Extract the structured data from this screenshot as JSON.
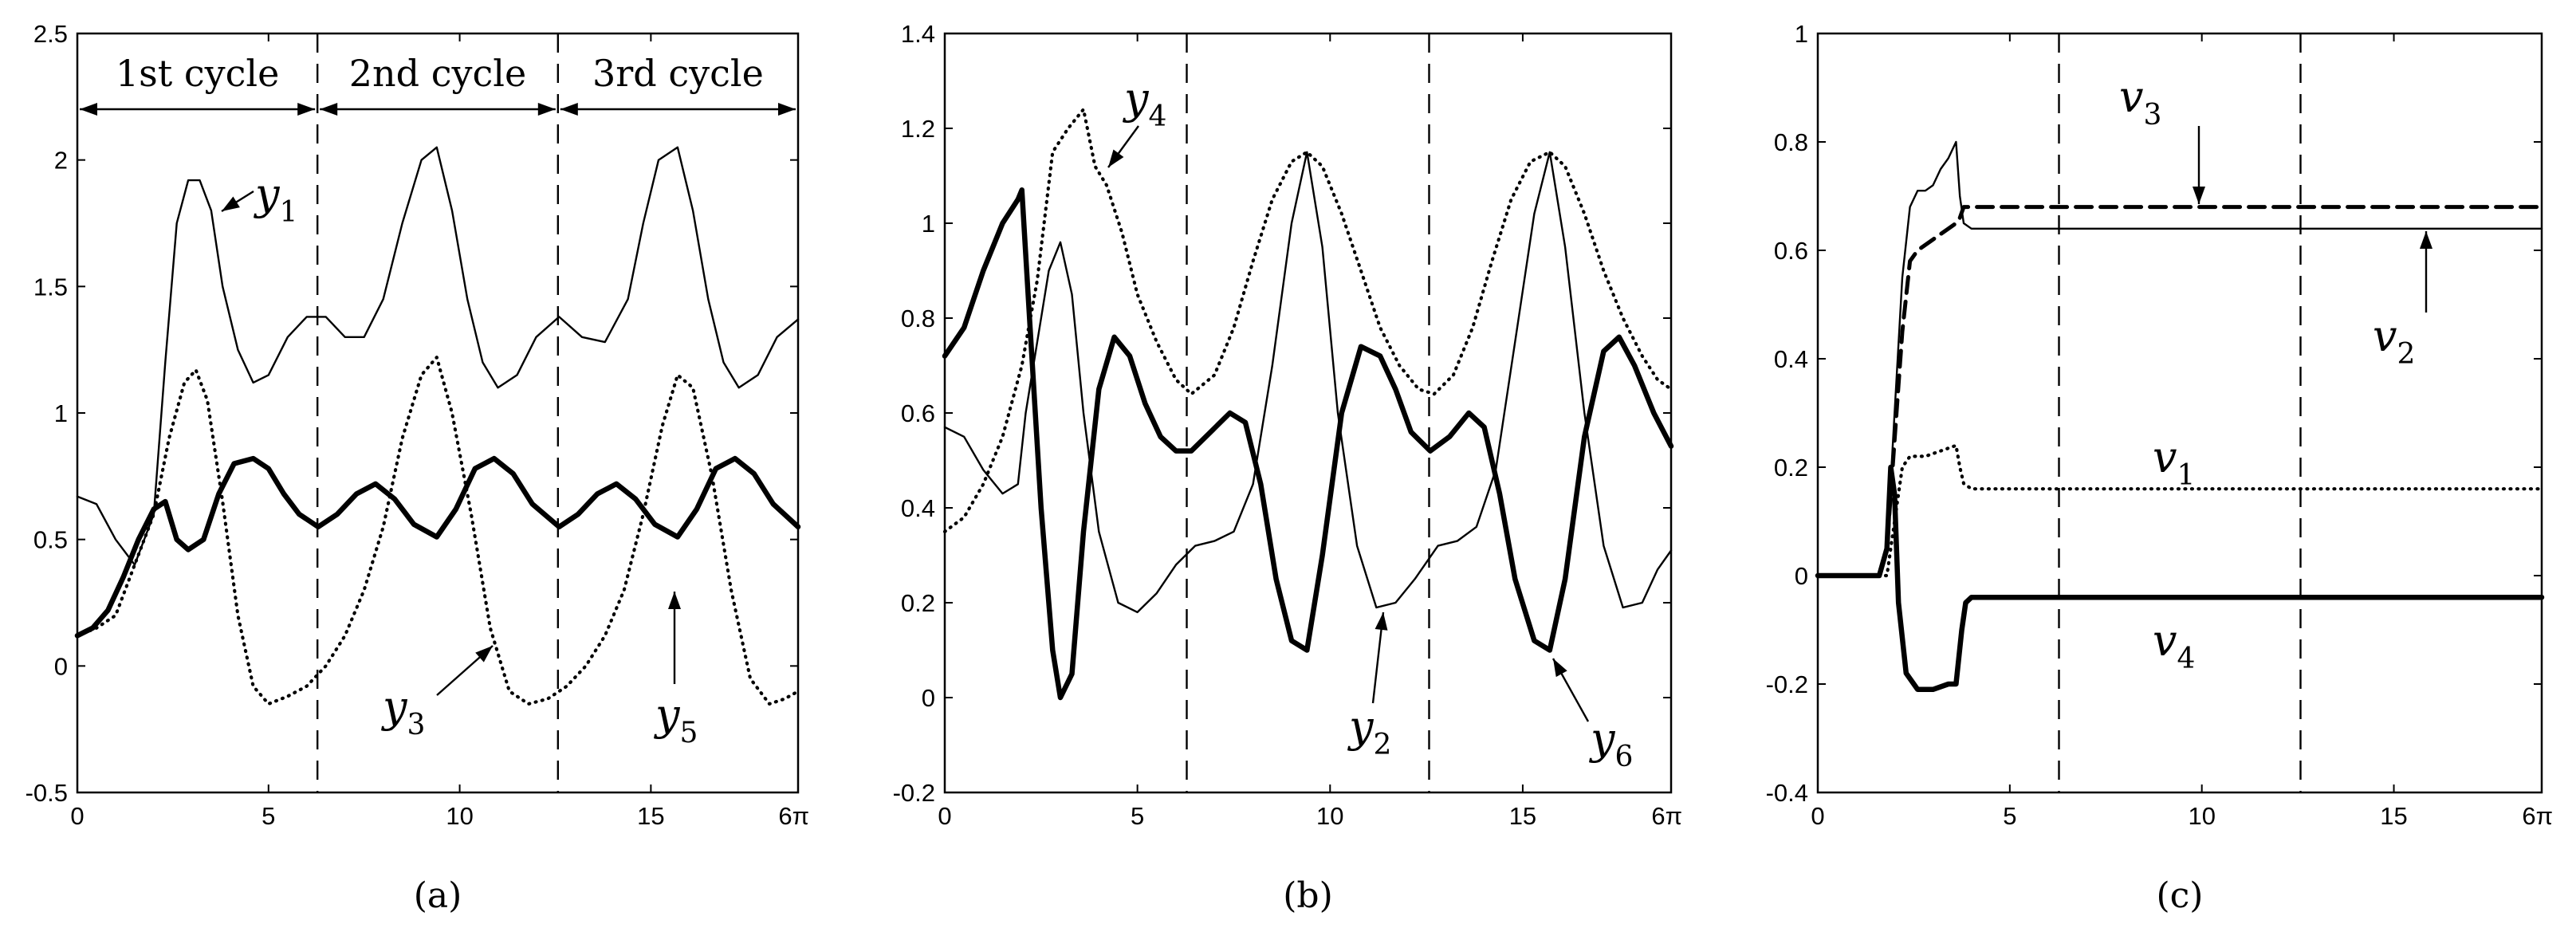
{
  "chart_data": [
    {
      "type": "line",
      "caption": "(a)",
      "xlim": [
        0,
        18.85
      ],
      "ylim": [
        -0.5,
        2.5
      ],
      "xticks": [
        {
          "v": 0,
          "label": "0"
        },
        {
          "v": 5,
          "label": "5"
        },
        {
          "v": 10,
          "label": "10"
        },
        {
          "v": 15,
          "label": "15"
        },
        {
          "v": 18.85,
          "label": "6π"
        }
      ],
      "yticks": [
        {
          "v": -0.5,
          "label": "-0.5"
        },
        {
          "v": 0,
          "label": "0"
        },
        {
          "v": 0.5,
          "label": "0.5"
        },
        {
          "v": 1,
          "label": "1"
        },
        {
          "v": 1.5,
          "label": "1.5"
        },
        {
          "v": 2,
          "label": "2"
        },
        {
          "v": 2.5,
          "label": "2.5"
        }
      ],
      "vlines": [
        6.28,
        12.57
      ],
      "cycles": [
        {
          "label": "1st cycle",
          "from": 0,
          "to": 6.28
        },
        {
          "label": "2nd cycle",
          "from": 6.28,
          "to": 12.57
        },
        {
          "label": "3rd cycle",
          "from": 12.57,
          "to": 18.85
        }
      ],
      "series": [
        {
          "name": "y1",
          "style": "thin",
          "x": [
            0,
            0.5,
            1.0,
            1.5,
            2.0,
            2.3,
            2.6,
            2.9,
            3.2,
            3.5,
            3.8,
            4.2,
            4.6,
            5.0,
            5.5,
            6.0,
            6.5,
            7.0,
            7.5,
            8.0,
            8.5,
            9.0,
            9.4,
            9.8,
            10.2,
            10.6,
            11.0,
            11.5,
            12.0,
            12.6,
            13.2,
            13.8,
            14.4,
            14.8,
            15.2,
            15.7,
            16.1,
            16.5,
            16.9,
            17.3,
            17.8,
            18.3,
            18.85
          ],
          "y": [
            0.67,
            0.64,
            0.5,
            0.4,
            0.6,
            1.2,
            1.75,
            1.92,
            1.92,
            1.8,
            1.5,
            1.25,
            1.12,
            1.15,
            1.3,
            1.38,
            1.38,
            1.3,
            1.3,
            1.45,
            1.75,
            2.0,
            2.05,
            1.8,
            1.45,
            1.2,
            1.1,
            1.15,
            1.3,
            1.38,
            1.3,
            1.28,
            1.45,
            1.75,
            2.0,
            2.05,
            1.8,
            1.45,
            1.2,
            1.1,
            1.15,
            1.3,
            1.37
          ]
        },
        {
          "name": "y3",
          "style": "dotted",
          "x": [
            0,
            0.5,
            1.0,
            1.5,
            2.0,
            2.4,
            2.8,
            3.1,
            3.4,
            3.8,
            4.2,
            4.6,
            5.0,
            5.5,
            6.0,
            6.5,
            7.0,
            7.5,
            8.0,
            8.5,
            9.0,
            9.4,
            9.8,
            10.3,
            10.8,
            11.3,
            11.8,
            12.3,
            12.8,
            13.3,
            13.8,
            14.3,
            14.8,
            15.3,
            15.7,
            16.1,
            16.6,
            17.1,
            17.6,
            18.1,
            18.5,
            18.85
          ],
          "y": [
            0.12,
            0.15,
            0.2,
            0.4,
            0.6,
            0.9,
            1.12,
            1.17,
            1.05,
            0.65,
            0.2,
            -0.08,
            -0.15,
            -0.12,
            -0.08,
            0.0,
            0.12,
            0.3,
            0.55,
            0.9,
            1.15,
            1.22,
            1.0,
            0.6,
            0.15,
            -0.1,
            -0.15,
            -0.13,
            -0.08,
            0.0,
            0.12,
            0.3,
            0.6,
            0.95,
            1.15,
            1.1,
            0.75,
            0.3,
            -0.05,
            -0.15,
            -0.13,
            -0.1
          ]
        },
        {
          "name": "y5",
          "style": "thick",
          "x": [
            0,
            0.4,
            0.8,
            1.2,
            1.6,
            2.0,
            2.3,
            2.6,
            2.9,
            3.3,
            3.7,
            4.1,
            4.6,
            5.0,
            5.4,
            5.8,
            6.3,
            6.8,
            7.3,
            7.8,
            8.3,
            8.8,
            9.4,
            9.9,
            10.4,
            10.9,
            11.4,
            11.9,
            12.6,
            13.1,
            13.6,
            14.1,
            14.6,
            15.1,
            15.7,
            16.2,
            16.7,
            17.2,
            17.7,
            18.2,
            18.85
          ],
          "y": [
            0.12,
            0.15,
            0.22,
            0.35,
            0.5,
            0.62,
            0.65,
            0.5,
            0.46,
            0.5,
            0.68,
            0.8,
            0.82,
            0.78,
            0.68,
            0.6,
            0.55,
            0.6,
            0.68,
            0.72,
            0.66,
            0.56,
            0.51,
            0.62,
            0.78,
            0.82,
            0.76,
            0.64,
            0.55,
            0.6,
            0.68,
            0.72,
            0.66,
            0.56,
            0.51,
            0.62,
            0.78,
            0.82,
            0.76,
            0.64,
            0.55
          ]
        }
      ],
      "labels": [
        {
          "text": "y",
          "sub": "1"
        },
        {
          "text": "y",
          "sub": "3"
        },
        {
          "text": "y",
          "sub": "5"
        }
      ]
    },
    {
      "type": "line",
      "caption": "(b)",
      "xlim": [
        0,
        18.85
      ],
      "ylim": [
        -0.2,
        1.4
      ],
      "xticks": [
        {
          "v": 0,
          "label": "0"
        },
        {
          "v": 5,
          "label": "5"
        },
        {
          "v": 10,
          "label": "10"
        },
        {
          "v": 15,
          "label": "15"
        },
        {
          "v": 18.85,
          "label": "6π"
        }
      ],
      "yticks": [
        {
          "v": -0.2,
          "label": "-0.2"
        },
        {
          "v": 0,
          "label": "0"
        },
        {
          "v": 0.2,
          "label": "0.2"
        },
        {
          "v": 0.4,
          "label": "0.4"
        },
        {
          "v": 0.6,
          "label": "0.6"
        },
        {
          "v": 0.8,
          "label": "0.8"
        },
        {
          "v": 1,
          "label": "1"
        },
        {
          "v": 1.2,
          "label": "1.2"
        },
        {
          "v": 1.4,
          "label": "1.4"
        }
      ],
      "vlines": [
        6.28,
        12.57
      ],
      "series": [
        {
          "name": "y2",
          "style": "thin",
          "x": [
            0,
            0.5,
            1.0,
            1.5,
            1.9,
            2.1,
            2.4,
            2.7,
            3.0,
            3.3,
            3.6,
            4.0,
            4.5,
            5.0,
            5.5,
            6.0,
            6.5,
            7.0,
            7.5,
            8.0,
            8.5,
            9.0,
            9.4,
            9.8,
            10.2,
            10.7,
            11.2,
            11.7,
            12.2,
            12.8,
            13.3,
            13.8,
            14.3,
            14.8,
            15.3,
            15.7,
            16.1,
            16.6,
            17.1,
            17.6,
            18.1,
            18.5,
            18.85
          ],
          "y": [
            0.57,
            0.55,
            0.48,
            0.43,
            0.45,
            0.6,
            0.75,
            0.9,
            0.96,
            0.85,
            0.6,
            0.35,
            0.2,
            0.18,
            0.22,
            0.28,
            0.32,
            0.33,
            0.35,
            0.45,
            0.7,
            1.0,
            1.15,
            0.95,
            0.6,
            0.32,
            0.19,
            0.2,
            0.25,
            0.32,
            0.33,
            0.36,
            0.48,
            0.75,
            1.02,
            1.15,
            0.95,
            0.6,
            0.32,
            0.19,
            0.2,
            0.27,
            0.31
          ]
        },
        {
          "name": "y4",
          "style": "dotted",
          "x": [
            0,
            0.5,
            1.0,
            1.5,
            2.0,
            2.4,
            2.8,
            3.2,
            3.6,
            3.9,
            4.2,
            4.6,
            5.0,
            5.5,
            6.0,
            6.4,
            7.0,
            7.5,
            8.0,
            8.5,
            9.0,
            9.4,
            9.8,
            10.3,
            10.8,
            11.3,
            11.8,
            12.3,
            12.7,
            13.2,
            13.7,
            14.2,
            14.7,
            15.2,
            15.7,
            16.1,
            16.6,
            17.1,
            17.6,
            18.1,
            18.5,
            18.85
          ],
          "y": [
            0.35,
            0.38,
            0.45,
            0.55,
            0.7,
            0.88,
            1.15,
            1.2,
            1.24,
            1.12,
            1.08,
            0.98,
            0.85,
            0.75,
            0.67,
            0.64,
            0.68,
            0.78,
            0.92,
            1.05,
            1.13,
            1.15,
            1.12,
            1.02,
            0.9,
            0.78,
            0.7,
            0.65,
            0.64,
            0.68,
            0.78,
            0.92,
            1.05,
            1.13,
            1.15,
            1.12,
            1.02,
            0.9,
            0.8,
            0.72,
            0.67,
            0.65
          ]
        },
        {
          "name": "y6",
          "style": "thick",
          "x": [
            0,
            0.5,
            1.0,
            1.5,
            1.9,
            2.0,
            2.2,
            2.5,
            2.8,
            3.0,
            3.3,
            3.6,
            4.0,
            4.4,
            4.8,
            5.2,
            5.6,
            6.0,
            6.4,
            6.9,
            7.4,
            7.8,
            8.2,
            8.6,
            9.0,
            9.4,
            9.8,
            10.3,
            10.8,
            11.3,
            11.7,
            12.1,
            12.6,
            13.1,
            13.6,
            14.0,
            14.4,
            14.8,
            15.3,
            15.7,
            16.1,
            16.6,
            17.1,
            17.5,
            17.9,
            18.4,
            18.85
          ],
          "y": [
            0.72,
            0.78,
            0.9,
            1.0,
            1.05,
            1.07,
            0.8,
            0.4,
            0.1,
            0.0,
            0.05,
            0.35,
            0.65,
            0.76,
            0.72,
            0.62,
            0.55,
            0.52,
            0.52,
            0.56,
            0.6,
            0.58,
            0.45,
            0.25,
            0.12,
            0.1,
            0.3,
            0.6,
            0.74,
            0.72,
            0.65,
            0.56,
            0.52,
            0.55,
            0.6,
            0.57,
            0.43,
            0.25,
            0.12,
            0.1,
            0.25,
            0.55,
            0.73,
            0.76,
            0.7,
            0.6,
            0.53
          ]
        }
      ],
      "labels": [
        {
          "text": "y",
          "sub": "4"
        },
        {
          "text": "y",
          "sub": "2"
        },
        {
          "text": "y",
          "sub": "6"
        }
      ]
    },
    {
      "type": "line",
      "caption": "(c)",
      "xlim": [
        0,
        18.85
      ],
      "ylim": [
        -0.4,
        1.0
      ],
      "xticks": [
        {
          "v": 0,
          "label": "0"
        },
        {
          "v": 5,
          "label": "5"
        },
        {
          "v": 10,
          "label": "10"
        },
        {
          "v": 15,
          "label": "15"
        },
        {
          "v": 18.85,
          "label": "6π"
        }
      ],
      "yticks": [
        {
          "v": -0.4,
          "label": "-0.4"
        },
        {
          "v": -0.2,
          "label": "-0.2"
        },
        {
          "v": 0,
          "label": "0"
        },
        {
          "v": 0.2,
          "label": "0.2"
        },
        {
          "v": 0.4,
          "label": "0.4"
        },
        {
          "v": 0.6,
          "label": "0.6"
        },
        {
          "v": 0.8,
          "label": "0.8"
        },
        {
          "v": 1,
          "label": "1"
        }
      ],
      "vlines": [
        6.28,
        12.57
      ],
      "series": [
        {
          "name": "v2",
          "style": "thin",
          "x": [
            0,
            1.6,
            1.8,
            2.0,
            2.2,
            2.4,
            2.6,
            2.8,
            3.0,
            3.2,
            3.4,
            3.6,
            3.7,
            3.8,
            4.0,
            18.85
          ],
          "y": [
            0,
            0,
            0.05,
            0.3,
            0.55,
            0.68,
            0.71,
            0.71,
            0.72,
            0.75,
            0.77,
            0.8,
            0.7,
            0.65,
            0.64,
            0.64
          ]
        },
        {
          "name": "v3",
          "style": "dashed",
          "x": [
            0,
            1.6,
            1.8,
            2.0,
            2.2,
            2.4,
            2.6,
            2.8,
            3.0,
            3.2,
            3.4,
            3.6,
            3.7,
            3.8,
            4.0,
            18.85
          ],
          "y": [
            0,
            0,
            0.05,
            0.25,
            0.45,
            0.58,
            0.6,
            0.61,
            0.62,
            0.63,
            0.64,
            0.65,
            0.66,
            0.68,
            0.68,
            0.68
          ]
        },
        {
          "name": "v1",
          "style": "dotted",
          "x": [
            0,
            1.8,
            2.0,
            2.2,
            2.4,
            2.8,
            3.2,
            3.6,
            3.7,
            3.8,
            4.0,
            18.85
          ],
          "y": [
            0,
            0,
            0.1,
            0.2,
            0.22,
            0.22,
            0.23,
            0.24,
            0.2,
            0.17,
            0.16,
            0.16
          ]
        },
        {
          "name": "v4",
          "style": "thick",
          "x": [
            0,
            1.6,
            1.8,
            1.9,
            2.0,
            2.1,
            2.3,
            2.6,
            3.0,
            3.4,
            3.6,
            3.75,
            3.85,
            4.0,
            18.85
          ],
          "y": [
            0,
            0,
            0.05,
            0.2,
            0.15,
            -0.05,
            -0.18,
            -0.21,
            -0.21,
            -0.2,
            -0.2,
            -0.1,
            -0.05,
            -0.04,
            -0.04
          ]
        }
      ],
      "labels": [
        {
          "text": "v",
          "sub": "3"
        },
        {
          "text": "v",
          "sub": "2"
        },
        {
          "text": "v",
          "sub": "1"
        },
        {
          "text": "v",
          "sub": "4"
        }
      ]
    }
  ]
}
